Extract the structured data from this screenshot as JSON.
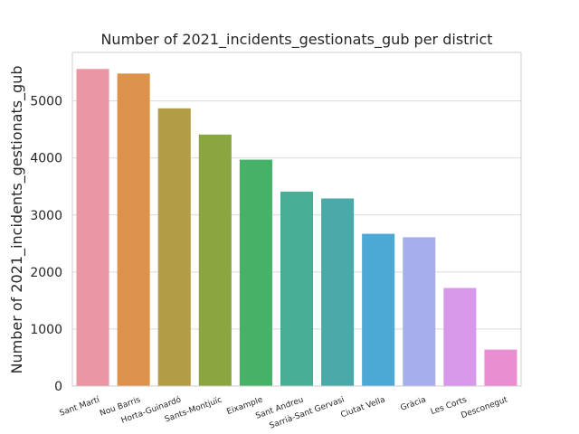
{
  "chart_data": {
    "type": "bar",
    "title": "Number of 2021_incidents_gestionats_gub per district",
    "xlabel": "",
    "ylabel": "Number of 2021_incidents_gestionats_gub",
    "categories": [
      "Sant Martí",
      "Nou Barris",
      "Horta-Guinardó",
      "Sants-Montjuïc",
      "Eixample",
      "Sant Andreu",
      "Sarrià-Sant Gervasi",
      "Ciutat Vella",
      "Gràcia",
      "Les Corts",
      "Desconegut"
    ],
    "values": [
      5560,
      5480,
      4870,
      4410,
      3970,
      3410,
      3290,
      2670,
      2610,
      1720,
      640
    ],
    "ylim": [
      0,
      5850
    ],
    "yticks": [
      0,
      1000,
      2000,
      3000,
      4000,
      5000
    ],
    "grid": true,
    "colors": [
      "#ea96a3",
      "#dd924c",
      "#b19d44",
      "#8ba641",
      "#45b268",
      "#48ad95",
      "#4aaaa9",
      "#4ca8d4",
      "#a6afec",
      "#d898e9",
      "#e98fd1"
    ],
    "axis_color": "#cccccc",
    "grid_color": "#d9d9d9"
  }
}
